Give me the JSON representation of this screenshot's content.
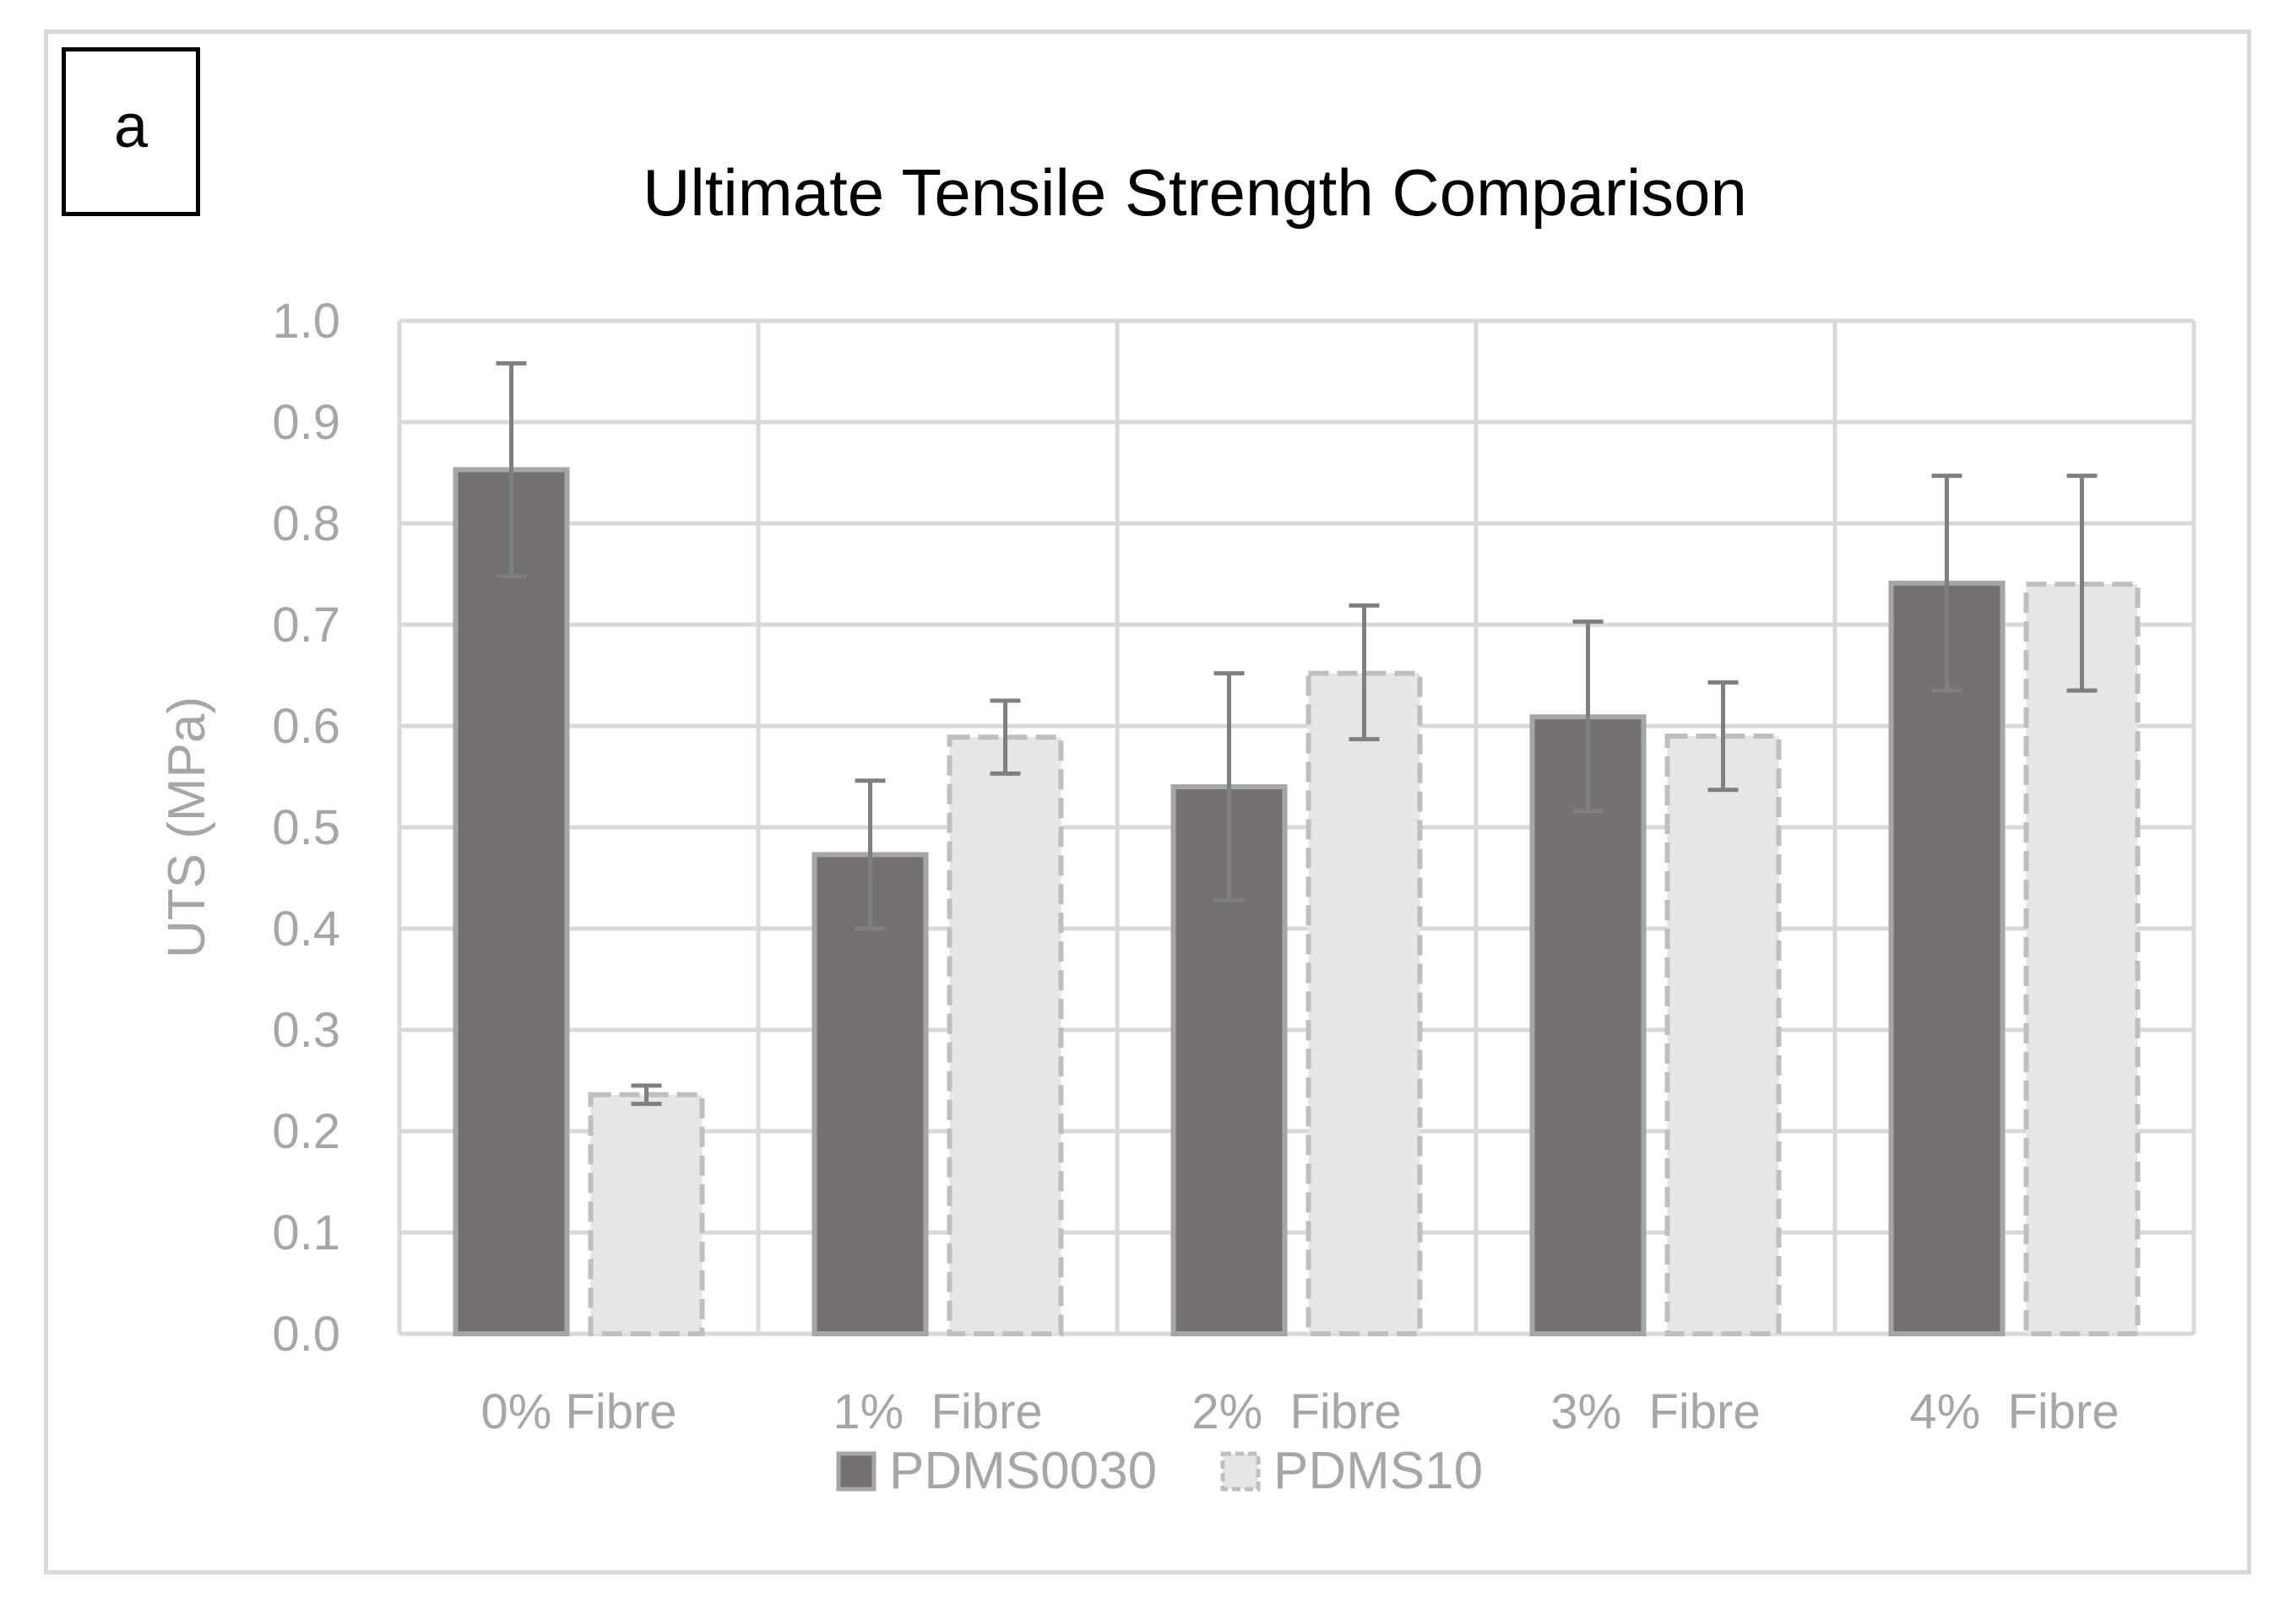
{
  "panel_label": "a",
  "chart_data": {
    "type": "bar",
    "title": "Ultimate Tensile Strength Comparison",
    "xlabel": "",
    "ylabel": "UTS (MPa)",
    "ylim": [
      0,
      1.0
    ],
    "yticks": [
      "0.0",
      "0.1",
      "0.2",
      "0.3",
      "0.4",
      "0.5",
      "0.6",
      "0.7",
      "0.8",
      "0.9",
      "1.0"
    ],
    "categories": [
      "0% Fibre",
      "1%  Fibre",
      "2%  Fibre",
      "3%  Fibre",
      "4%  Fibre"
    ],
    "series": [
      {
        "name": "PDMS0030",
        "values": [
          0.853,
          0.473,
          0.54,
          0.609,
          0.741
        ],
        "error_low": [
          0.748,
          0.4,
          0.428,
          0.516,
          0.635
        ],
        "error_high": [
          0.958,
          0.546,
          0.652,
          0.703,
          0.847
        ],
        "fill": "#767171",
        "stroke": "#a6a6a6",
        "dashed": false
      },
      {
        "name": "PDMS10",
        "values": [
          0.236,
          0.589,
          0.652,
          0.59,
          0.74
        ],
        "error_low": [
          0.227,
          0.553,
          0.587,
          0.537,
          0.635
        ],
        "error_high": [
          0.245,
          0.625,
          0.719,
          0.643,
          0.847
        ],
        "fill": "#e7e6e6",
        "stroke": "#bfbfbf",
        "dashed": true
      }
    ],
    "grid": true,
    "legend": "bottom",
    "colors": {
      "grid": "#d9d9d9",
      "error_bar": "#7f7f7f",
      "text": "#a6a6a6"
    }
  }
}
